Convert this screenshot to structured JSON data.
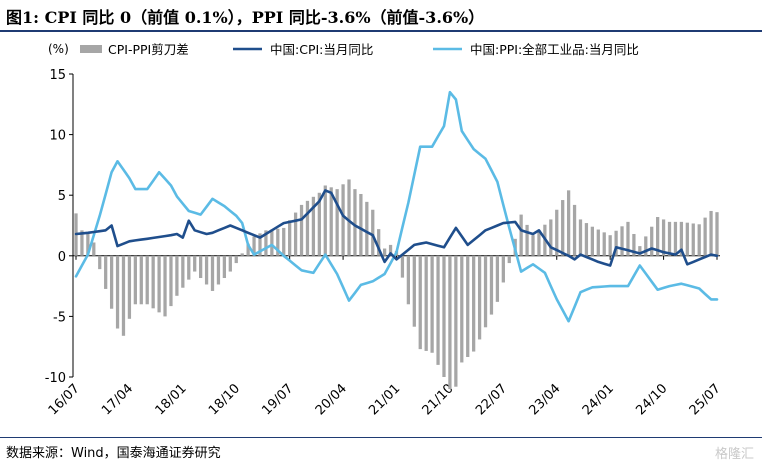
{
  "title": "图1:  CPI 同比 0（前值 0.1%），PPI 同比-3.6%（前值-3.6%）",
  "source": "数据来源：Wind，国泰海通证券研究",
  "watermark": "格隆汇",
  "chart_data": {
    "type": "bar+line",
    "ylabel": "(%)",
    "ylim": [
      -10,
      15
    ],
    "yticks": [
      -10,
      -5,
      0,
      5,
      10,
      15
    ],
    "xticks": [
      "16/07",
      "17/04",
      "18/01",
      "18/10",
      "19/07",
      "20/04",
      "21/01",
      "21/10",
      "22/07",
      "23/04",
      "24/01",
      "24/10",
      "25/07"
    ],
    "x_range": [
      "2016-07",
      "2025-07"
    ],
    "colors": {
      "gap": "#a6a6a6",
      "cpi": "#1f4e8c",
      "ppi": "#5bbbe5"
    },
    "legend": [
      "CPI-PPI剪刀差",
      "中国:CPI:当月同比",
      "中国:PPI:全部工业品:当月同比"
    ],
    "series": [
      {
        "name": "CPI-PPI剪刀差",
        "kind": "bar",
        "anchors": [
          [
            "2016-07",
            3.5
          ],
          [
            "2016-08",
            2.1
          ],
          [
            "2016-09",
            1.9
          ],
          [
            "2016-10",
            1.1
          ],
          [
            "2016-11",
            -1.1
          ],
          [
            "2017-02",
            -6.0
          ],
          [
            "2017-03",
            -6.6
          ],
          [
            "2017-04",
            -5.2
          ],
          [
            "2017-05",
            -4.0
          ],
          [
            "2017-07",
            -4.0
          ],
          [
            "2017-10",
            -5.0
          ],
          [
            "2017-12",
            -3.3
          ],
          [
            "2018-03",
            -1.3
          ],
          [
            "2018-06",
            -2.9
          ],
          [
            "2018-09",
            -1.3
          ],
          [
            "2018-10",
            -0.6
          ],
          [
            "2018-12",
            1.0
          ],
          [
            "2019-01",
            1.6
          ],
          [
            "2019-03",
            2.1
          ],
          [
            "2019-06",
            2.3
          ],
          [
            "2019-09",
            4.2
          ],
          [
            "2019-12",
            5.2
          ],
          [
            "2020-01",
            5.8
          ],
          [
            "2020-03",
            5.5
          ],
          [
            "2020-05",
            6.3
          ],
          [
            "2020-06",
            5.5
          ],
          [
            "2020-07",
            5.1
          ],
          [
            "2020-09",
            3.8
          ],
          [
            "2020-11",
            0.6
          ],
          [
            "2020-12",
            0.9
          ],
          [
            "2021-01",
            0.4
          ],
          [
            "2021-03",
            -4.0
          ],
          [
            "2021-05",
            -7.7
          ],
          [
            "2021-07",
            -8.0
          ],
          [
            "2021-09",
            -10.0
          ],
          [
            "2021-10",
            -11.0
          ],
          [
            "2021-11",
            -10.8
          ],
          [
            "2021-12",
            -8.8
          ],
          [
            "2022-02",
            -7.9
          ],
          [
            "2022-04",
            -5.9
          ],
          [
            "2022-06",
            -3.8
          ],
          [
            "2022-08",
            -0.6
          ],
          [
            "2022-10",
            3.4
          ],
          [
            "2022-12",
            1.7
          ],
          [
            "2023-03",
            3.0
          ],
          [
            "2023-06",
            5.4
          ],
          [
            "2023-08",
            3.0
          ],
          [
            "2023-10",
            2.4
          ],
          [
            "2024-01",
            1.7
          ],
          [
            "2024-04",
            2.8
          ],
          [
            "2024-06",
            0.8
          ],
          [
            "2024-09",
            3.2
          ],
          [
            "2024-11",
            2.8
          ],
          [
            "2025-01",
            2.8
          ],
          [
            "2025-04",
            2.6
          ],
          [
            "2025-06",
            3.7
          ],
          [
            "2025-07",
            3.6
          ]
        ]
      },
      {
        "name": "中国:CPI:当月同比",
        "kind": "line",
        "anchors": [
          [
            "2016-07",
            1.8
          ],
          [
            "2016-09",
            1.9
          ],
          [
            "2016-12",
            2.1
          ],
          [
            "2017-01",
            2.5
          ],
          [
            "2017-02",
            0.8
          ],
          [
            "2017-04",
            1.2
          ],
          [
            "2017-07",
            1.4
          ],
          [
            "2017-11",
            1.7
          ],
          [
            "2017-12",
            1.8
          ],
          [
            "2018-01",
            1.5
          ],
          [
            "2018-02",
            2.9
          ],
          [
            "2018-03",
            2.1
          ],
          [
            "2018-05",
            1.8
          ],
          [
            "2018-06",
            1.9
          ],
          [
            "2018-09",
            2.5
          ],
          [
            "2018-12",
            1.9
          ],
          [
            "2019-01",
            1.7
          ],
          [
            "2019-02",
            1.5
          ],
          [
            "2019-06",
            2.7
          ],
          [
            "2019-09",
            3.0
          ],
          [
            "2019-12",
            4.5
          ],
          [
            "2020-01",
            5.4
          ],
          [
            "2020-02",
            5.2
          ],
          [
            "2020-04",
            3.3
          ],
          [
            "2020-06",
            2.5
          ],
          [
            "2020-09",
            1.7
          ],
          [
            "2020-11",
            -0.5
          ],
          [
            "2020-12",
            0.2
          ],
          [
            "2021-01",
            -0.3
          ],
          [
            "2021-04",
            0.9
          ],
          [
            "2021-06",
            1.1
          ],
          [
            "2021-09",
            0.7
          ],
          [
            "2021-11",
            2.3
          ],
          [
            "2022-01",
            0.9
          ],
          [
            "2022-04",
            2.1
          ],
          [
            "2022-07",
            2.7
          ],
          [
            "2022-09",
            2.8
          ],
          [
            "2022-10",
            2.1
          ],
          [
            "2022-12",
            1.8
          ],
          [
            "2023-01",
            2.1
          ],
          [
            "2023-03",
            0.7
          ],
          [
            "2023-06",
            0.0
          ],
          [
            "2023-07",
            -0.3
          ],
          [
            "2023-08",
            0.1
          ],
          [
            "2023-11",
            -0.5
          ],
          [
            "2024-01",
            -0.8
          ],
          [
            "2024-02",
            0.7
          ],
          [
            "2024-06",
            0.2
          ],
          [
            "2024-08",
            0.6
          ],
          [
            "2024-10",
            0.3
          ],
          [
            "2024-12",
            0.1
          ],
          [
            "2025-01",
            0.5
          ],
          [
            "2025-02",
            -0.7
          ],
          [
            "2025-05",
            -0.1
          ],
          [
            "2025-06",
            0.1
          ],
          [
            "2025-07",
            0.0
          ]
        ]
      },
      {
        "name": "中国:PPI:全部工业品:当月同比",
        "kind": "line",
        "anchors": [
          [
            "2016-07",
            -1.7
          ],
          [
            "2016-09",
            0.1
          ],
          [
            "2016-11",
            3.3
          ],
          [
            "2017-01",
            6.9
          ],
          [
            "2017-02",
            7.8
          ],
          [
            "2017-04",
            6.4
          ],
          [
            "2017-05",
            5.5
          ],
          [
            "2017-07",
            5.5
          ],
          [
            "2017-09",
            6.9
          ],
          [
            "2017-11",
            5.8
          ],
          [
            "2017-12",
            4.9
          ],
          [
            "2018-02",
            3.7
          ],
          [
            "2018-04",
            3.4
          ],
          [
            "2018-06",
            4.7
          ],
          [
            "2018-08",
            4.1
          ],
          [
            "2018-10",
            3.3
          ],
          [
            "2018-11",
            2.7
          ],
          [
            "2018-12",
            0.9
          ],
          [
            "2019-01",
            0.1
          ],
          [
            "2019-04",
            0.9
          ],
          [
            "2019-06",
            0.0
          ],
          [
            "2019-09",
            -1.2
          ],
          [
            "2019-11",
            -1.4
          ],
          [
            "2020-01",
            0.1
          ],
          [
            "2020-03",
            -1.5
          ],
          [
            "2020-05",
            -3.7
          ],
          [
            "2020-07",
            -2.4
          ],
          [
            "2020-09",
            -2.1
          ],
          [
            "2020-11",
            -1.5
          ],
          [
            "2021-01",
            0.3
          ],
          [
            "2021-03",
            4.4
          ],
          [
            "2021-05",
            9.0
          ],
          [
            "2021-07",
            9.0
          ],
          [
            "2021-09",
            10.7
          ],
          [
            "2021-10",
            13.5
          ],
          [
            "2021-11",
            12.9
          ],
          [
            "2021-12",
            10.3
          ],
          [
            "2022-02",
            8.8
          ],
          [
            "2022-04",
            8.0
          ],
          [
            "2022-06",
            6.1
          ],
          [
            "2022-08",
            2.3
          ],
          [
            "2022-10",
            -1.3
          ],
          [
            "2022-12",
            -0.7
          ],
          [
            "2023-02",
            -1.4
          ],
          [
            "2023-04",
            -3.6
          ],
          [
            "2023-06",
            -5.4
          ],
          [
            "2023-08",
            -3.0
          ],
          [
            "2023-10",
            -2.6
          ],
          [
            "2024-01",
            -2.5
          ],
          [
            "2024-04",
            -2.5
          ],
          [
            "2024-06",
            -0.8
          ],
          [
            "2024-09",
            -2.8
          ],
          [
            "2024-11",
            -2.5
          ],
          [
            "2025-01",
            -2.3
          ],
          [
            "2025-04",
            -2.7
          ],
          [
            "2025-06",
            -3.6
          ],
          [
            "2025-07",
            -3.6
          ]
        ]
      }
    ]
  }
}
